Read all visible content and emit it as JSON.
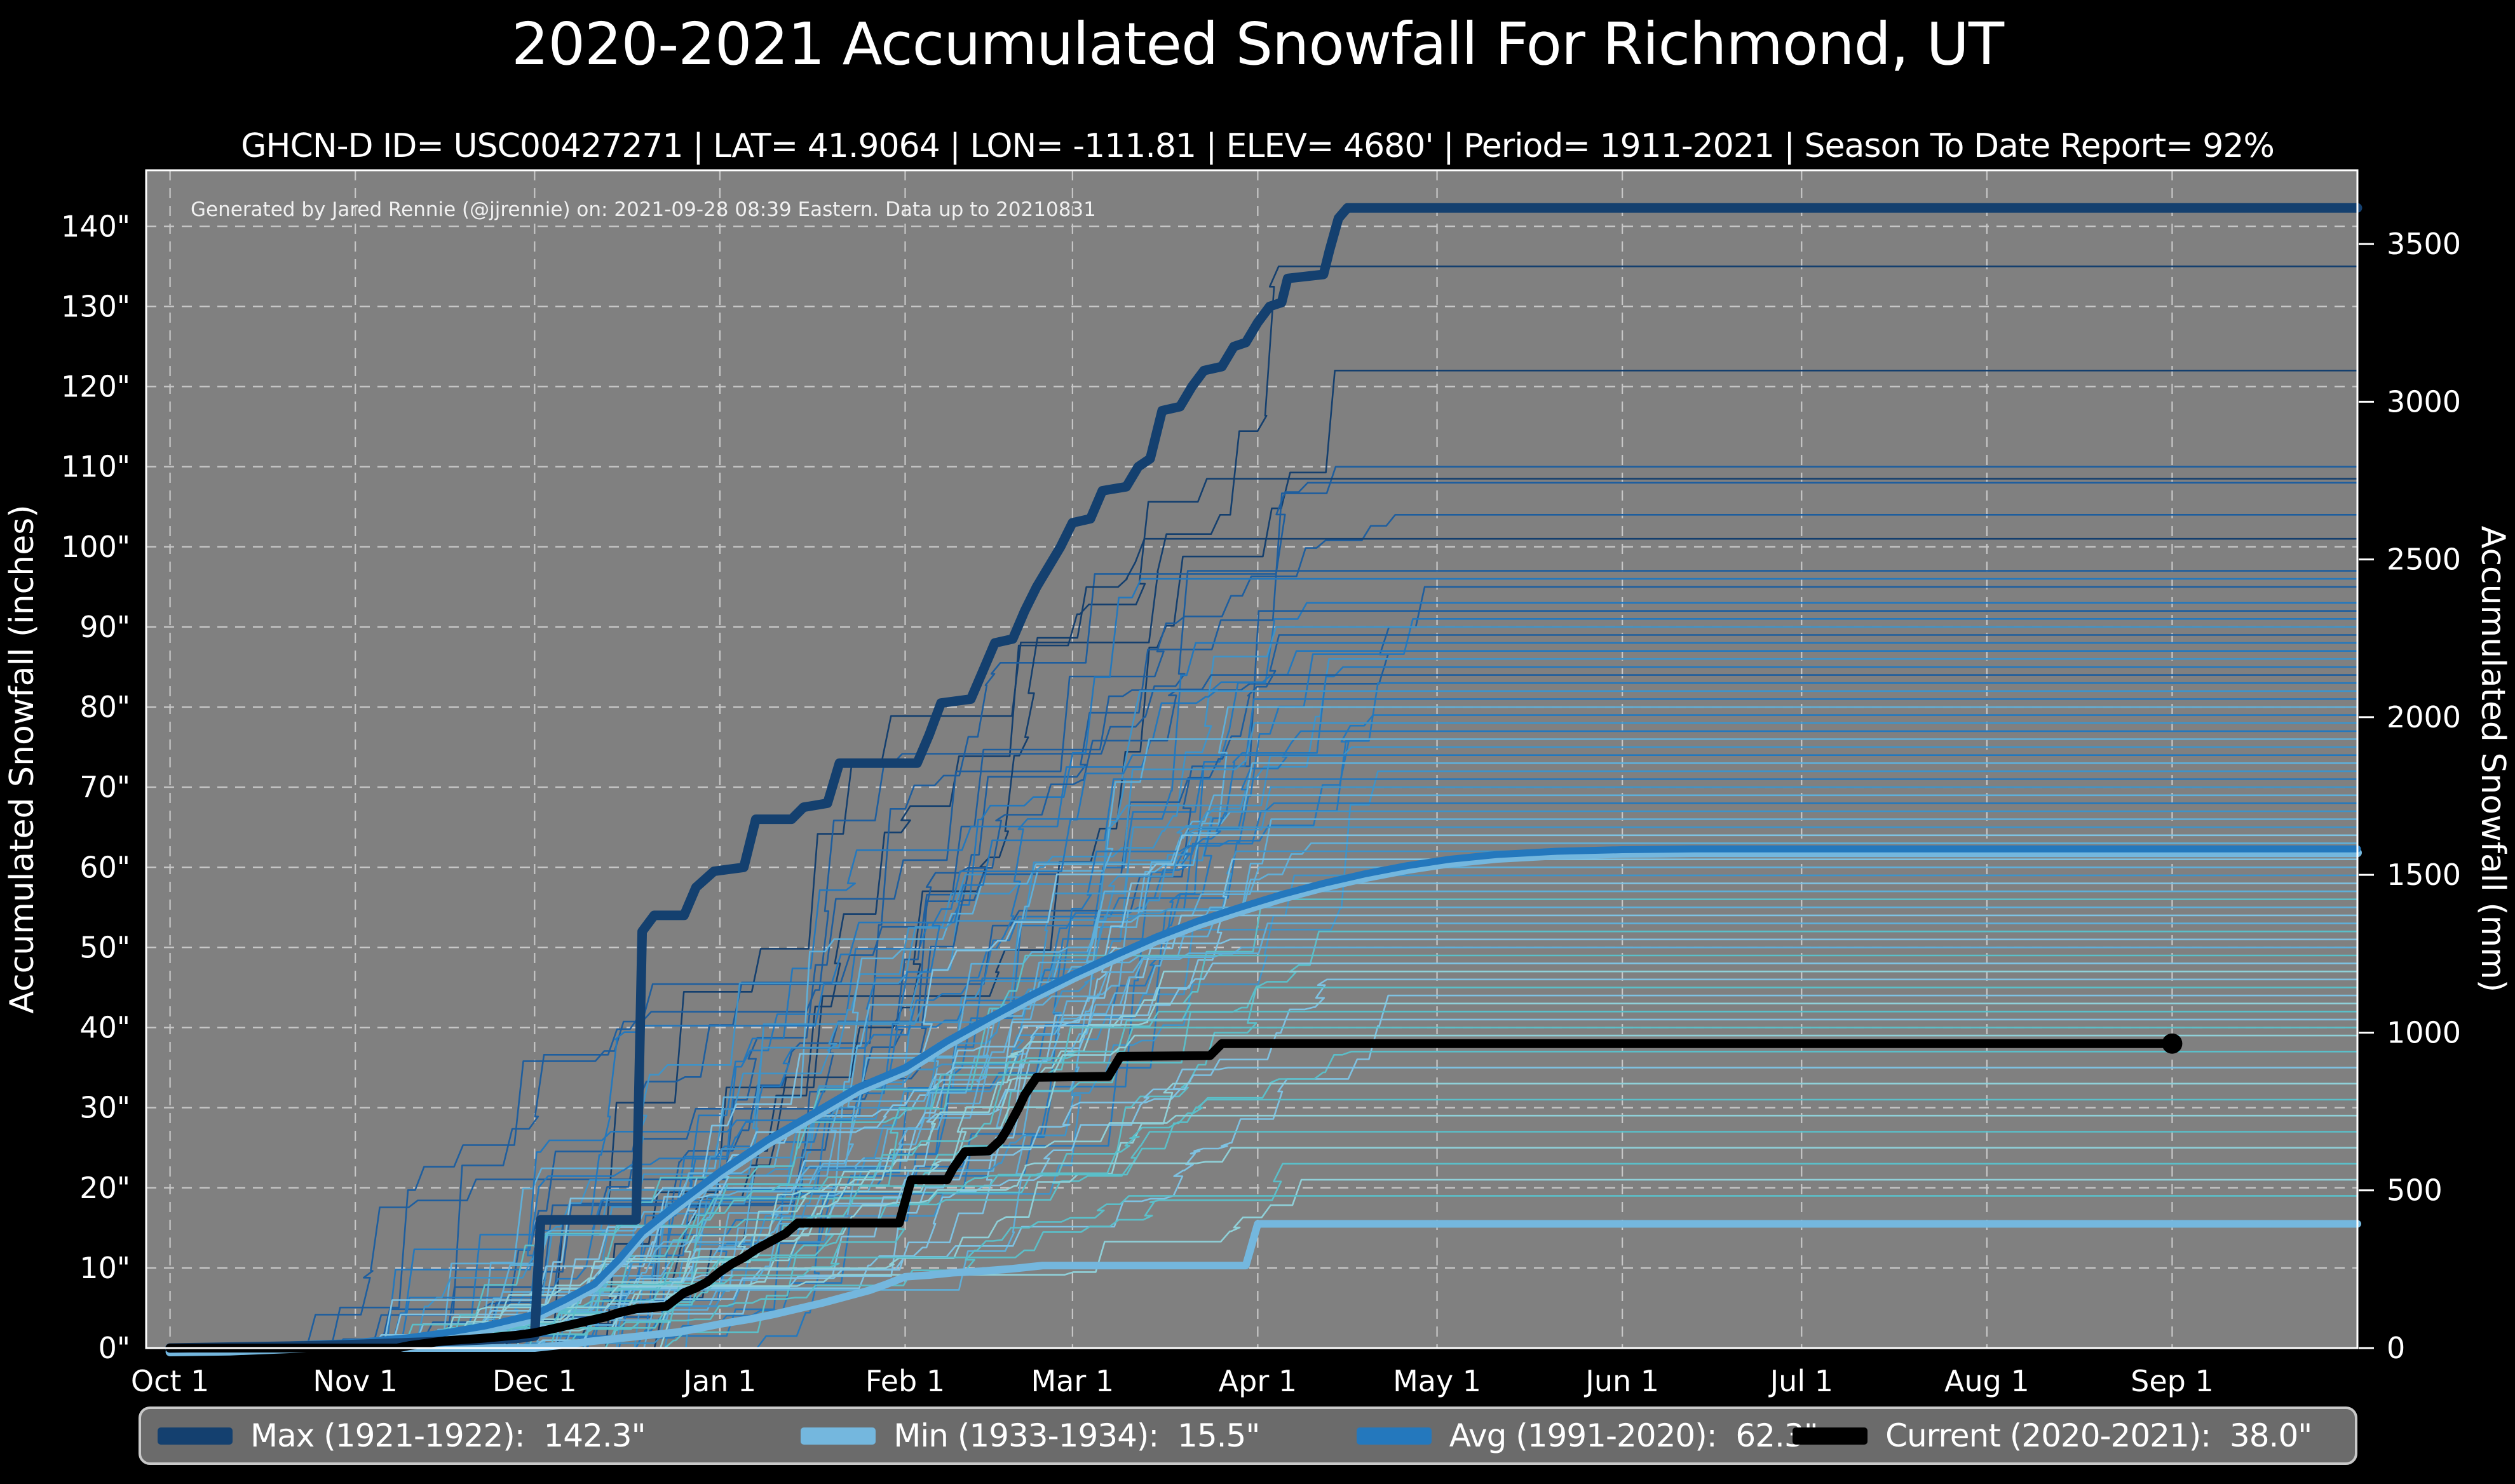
{
  "chart_data": {
    "type": "line",
    "title": "2020-2021 Accumulated Snowfall For Richmond, UT",
    "subtitle": "GHCN-D ID= USC00427271 | LAT= 41.9064 | LON= -111.81 | ELEV= 4680' | Period= 1911-2021 | Season To Date Report= 92%",
    "annotation": "Generated by Jared Rennie (@jjrennie) on: 2021-09-28 08:39 Eastern. Data up to 20210831",
    "colors": {
      "figure_bg": "#000000",
      "plot_bg": "#808080",
      "grid": "#c7c7c7",
      "spine": "#ffffff",
      "text": "#ffffff",
      "annotation_text": "#f0f0f0"
    },
    "x_axis": {
      "lim_days": [
        -4,
        366
      ],
      "grid": true,
      "ticks": [
        {
          "label": "Oct 1",
          "day": 0
        },
        {
          "label": "Nov 1",
          "day": 31
        },
        {
          "label": "Dec 1",
          "day": 61
        },
        {
          "label": "Jan 1",
          "day": 92
        },
        {
          "label": "Feb 1",
          "day": 123
        },
        {
          "label": "Mar 1",
          "day": 151
        },
        {
          "label": "Apr 1",
          "day": 182
        },
        {
          "label": "May 1",
          "day": 212
        },
        {
          "label": "Jun 1",
          "day": 243
        },
        {
          "label": "Jul 1",
          "day": 273
        },
        {
          "label": "Aug 1",
          "day": 304
        },
        {
          "label": "Sep 1",
          "day": 335
        }
      ]
    },
    "y_left": {
      "label": "Accumulated Snowfall (inches)",
      "unit": "\"",
      "lim": [
        0,
        147
      ],
      "tick_values": [
        0,
        10,
        20,
        30,
        40,
        50,
        60,
        70,
        80,
        90,
        100,
        110,
        120,
        130,
        140
      ],
      "grid": true
    },
    "y_right": {
      "label": "Accumulated Snowfall (mm)",
      "mm_per_inch": 25.4,
      "tick_values_mm": [
        0,
        500,
        1000,
        1500,
        2000,
        2500,
        3000,
        3500
      ]
    },
    "series": {
      "max": {
        "name": "Max (1921-1922)",
        "final_inches": 142.3,
        "color": "#14406f",
        "width": 15,
        "points": [
          [
            0,
            0
          ],
          [
            25,
            0.3
          ],
          [
            45,
            0.8
          ],
          [
            58,
            1.2
          ],
          [
            61,
            1.5
          ],
          [
            62,
            16
          ],
          [
            78,
            16
          ],
          [
            79,
            52
          ],
          [
            81,
            54
          ],
          [
            86,
            54
          ],
          [
            88,
            57.5
          ],
          [
            91,
            59.5
          ],
          [
            96,
            60
          ],
          [
            98,
            66
          ],
          [
            104,
            66
          ],
          [
            106,
            67.5
          ],
          [
            110,
            68
          ],
          [
            112,
            73
          ],
          [
            125,
            73
          ],
          [
            127,
            76.5
          ],
          [
            129,
            80.5
          ],
          [
            134,
            81
          ],
          [
            136,
            84.5
          ],
          [
            138,
            88
          ],
          [
            141,
            88.5
          ],
          [
            143,
            92
          ],
          [
            145,
            95
          ],
          [
            147,
            97.5
          ],
          [
            149,
            100
          ],
          [
            151,
            103
          ],
          [
            154,
            103.5
          ],
          [
            156,
            107
          ],
          [
            160,
            107.5
          ],
          [
            162,
            110
          ],
          [
            164,
            111
          ],
          [
            166,
            117
          ],
          [
            169,
            117.5
          ],
          [
            171,
            120
          ],
          [
            173,
            122
          ],
          [
            176,
            122.5
          ],
          [
            178,
            125
          ],
          [
            180,
            125.5
          ],
          [
            182,
            128
          ],
          [
            184,
            130
          ],
          [
            186,
            130.5
          ],
          [
            187,
            133.5
          ],
          [
            193,
            134
          ],
          [
            194,
            137
          ],
          [
            195.5,
            141
          ],
          [
            197,
            142.3
          ],
          [
            366,
            142.3
          ]
        ]
      },
      "min": {
        "name": "Min (1933-1934)",
        "final_inches": 15.5,
        "color": "#74b7de",
        "width": 12,
        "points": [
          [
            0,
            0
          ],
          [
            61,
            0
          ],
          [
            66,
            0.4
          ],
          [
            70,
            0.8
          ],
          [
            75,
            1.2
          ],
          [
            80,
            1.6
          ],
          [
            85,
            2
          ],
          [
            88,
            2.4
          ],
          [
            92,
            3
          ],
          [
            97,
            3.6
          ],
          [
            101,
            4.2
          ],
          [
            105,
            4.9
          ],
          [
            109,
            5.6
          ],
          [
            113,
            6.4
          ],
          [
            117,
            7.2
          ],
          [
            120,
            8
          ],
          [
            123,
            8.9
          ],
          [
            127,
            9.1
          ],
          [
            131,
            9.4
          ],
          [
            136,
            9.6
          ],
          [
            141,
            9.9
          ],
          [
            146,
            10.3
          ],
          [
            180,
            10.3
          ],
          [
            182,
            15.5
          ],
          [
            366,
            15.5
          ]
        ]
      },
      "avg": {
        "name": "Avg (1991-2020)",
        "final_inches": 62.3,
        "color": "#2478bd",
        "underlay_color": "#74b7de",
        "width": 11,
        "underlay_width": 14,
        "underlay_offset": 6,
        "points": [
          [
            0,
            0
          ],
          [
            10,
            0.1
          ],
          [
            20,
            0.4
          ],
          [
            31,
            0.7
          ],
          [
            40,
            1.3
          ],
          [
            46,
            1.9
          ],
          [
            53,
            2.8
          ],
          [
            61,
            4.2
          ],
          [
            66,
            6
          ],
          [
            71,
            8
          ],
          [
            75,
            11
          ],
          [
            79,
            14.5
          ],
          [
            84,
            17.5
          ],
          [
            92,
            22
          ],
          [
            100,
            26
          ],
          [
            107,
            29
          ],
          [
            115,
            32.5
          ],
          [
            123,
            35
          ],
          [
            130,
            38.3
          ],
          [
            137,
            41.2
          ],
          [
            144,
            44
          ],
          [
            151,
            46.6
          ],
          [
            158,
            49
          ],
          [
            165,
            51.3
          ],
          [
            172,
            53.3
          ],
          [
            179,
            55
          ],
          [
            186,
            56.6
          ],
          [
            193,
            58
          ],
          [
            200,
            59.2
          ],
          [
            207,
            60.2
          ],
          [
            214,
            61
          ],
          [
            222,
            61.6
          ],
          [
            232,
            62
          ],
          [
            243,
            62.2
          ],
          [
            255,
            62.3
          ],
          [
            366,
            62.3
          ]
        ]
      },
      "current": {
        "name": "Current (2020-2021)",
        "final_inches": 38.0,
        "color": "#000000",
        "width": 14,
        "end_dot": {
          "day": 335,
          "value": 38.0,
          "radius": 16
        },
        "points": [
          [
            0,
            0
          ],
          [
            38,
            0
          ],
          [
            40,
            0.3
          ],
          [
            46,
            0.9
          ],
          [
            52,
            1.2
          ],
          [
            58,
            1.6
          ],
          [
            61,
            1.9
          ],
          [
            64,
            2.4
          ],
          [
            67,
            2.9
          ],
          [
            70,
            3.4
          ],
          [
            73,
            3.9
          ],
          [
            75,
            4.4
          ],
          [
            78,
            4.9
          ],
          [
            83,
            5.2
          ],
          [
            86,
            6.9
          ],
          [
            88,
            7.5
          ],
          [
            90,
            8.3
          ],
          [
            92,
            9.5
          ],
          [
            94,
            10.5
          ],
          [
            96,
            11.3
          ],
          [
            98,
            12.3
          ],
          [
            100,
            13.1
          ],
          [
            103,
            14.3
          ],
          [
            105,
            15.6
          ],
          [
            122,
            15.6
          ],
          [
            124,
            21
          ],
          [
            130,
            21
          ],
          [
            131,
            22.4
          ],
          [
            133,
            24.5
          ],
          [
            137,
            24.6
          ],
          [
            139,
            26
          ],
          [
            140,
            27.2
          ],
          [
            141,
            28.6
          ],
          [
            142,
            30
          ],
          [
            143,
            31.6
          ],
          [
            145,
            33.8
          ],
          [
            157,
            33.9
          ],
          [
            159,
            36.4
          ],
          [
            174,
            36.5
          ],
          [
            176,
            38
          ],
          [
            335,
            38
          ]
        ]
      }
    },
    "ensemble": {
      "description": "thin historical season traces 1911-2021",
      "seed": 20210928,
      "line_width": 2.6,
      "gen": {
        "start_min": 20,
        "start_span": 45,
        "end_min": 160,
        "end_span": 55,
        "events_min": 12,
        "events_span": 16
      },
      "palette": [
        "#143f6e",
        "#1e5e9e",
        "#2478bd",
        "#3f93c8",
        "#5fafd9",
        "#7ec2e2",
        "#5bbfc9",
        "#8fd0d8"
      ],
      "lines": [
        [
          135,
          0
        ],
        [
          122,
          0
        ],
        [
          110,
          1
        ],
        [
          108.5,
          0
        ],
        [
          108,
          1
        ],
        [
          104,
          1
        ],
        [
          101,
          0
        ],
        [
          97,
          1
        ],
        [
          96,
          2
        ],
        [
          95,
          1
        ],
        [
          93,
          2
        ],
        [
          92,
          1
        ],
        [
          91,
          2
        ],
        [
          90,
          3
        ],
        [
          89,
          1
        ],
        [
          88,
          2
        ],
        [
          87,
          2
        ],
        [
          86,
          3
        ],
        [
          85,
          2
        ],
        [
          84,
          1
        ],
        [
          83,
          2
        ],
        [
          82,
          3
        ],
        [
          81,
          2
        ],
        [
          80,
          4
        ],
        [
          79,
          2
        ],
        [
          78,
          3
        ],
        [
          77,
          2
        ],
        [
          76,
          4
        ],
        [
          75,
          3
        ],
        [
          74,
          2
        ],
        [
          73,
          4
        ],
        [
          72,
          3
        ],
        [
          71,
          2
        ],
        [
          70,
          3
        ],
        [
          69,
          4
        ],
        [
          68,
          2
        ],
        [
          67,
          3
        ],
        [
          66,
          4
        ],
        [
          65,
          3
        ],
        [
          64,
          5
        ],
        [
          63,
          4
        ],
        [
          62,
          3
        ],
        [
          61,
          5
        ],
        [
          60,
          4
        ],
        [
          59,
          3
        ],
        [
          58,
          5
        ],
        [
          57,
          4
        ],
        [
          56,
          6
        ],
        [
          55,
          4
        ],
        [
          54,
          5
        ],
        [
          53,
          4
        ],
        [
          52,
          6
        ],
        [
          51,
          5
        ],
        [
          50,
          4
        ],
        [
          49,
          6
        ],
        [
          48,
          5
        ],
        [
          47,
          7
        ],
        [
          46,
          5
        ],
        [
          45,
          6
        ],
        [
          44,
          5
        ],
        [
          43,
          7
        ],
        [
          42,
          6
        ],
        [
          41,
          5
        ],
        [
          40,
          6
        ],
        [
          39,
          7
        ],
        [
          37,
          6
        ],
        [
          35,
          5
        ],
        [
          33,
          7
        ],
        [
          31,
          6
        ],
        [
          29,
          7
        ],
        [
          27,
          6
        ],
        [
          25,
          7
        ],
        [
          23,
          6
        ],
        [
          21,
          7
        ],
        [
          19,
          6
        ]
      ]
    },
    "legend": {
      "bg": "#6b6b6b",
      "border": "#c9c9c9",
      "items": [
        {
          "key": "max",
          "label": "Max (1921-1922):  142.3\""
        },
        {
          "key": "min",
          "label": "Min (1933-1934):  15.5\""
        },
        {
          "key": "avg",
          "label": "Avg (1991-2020):  62.3\""
        },
        {
          "key": "current",
          "label": "Current (2020-2021):  38.0\""
        }
      ]
    }
  }
}
